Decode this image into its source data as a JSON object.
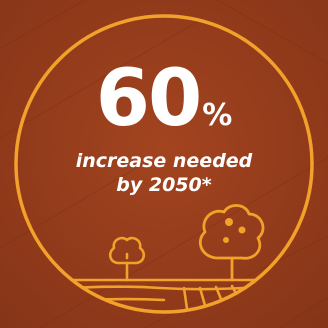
{
  "stat": {
    "value": "60",
    "unit": "%",
    "line1": "increase needed",
    "line2": "by 2050*"
  },
  "colors": {
    "background": "#953c1e",
    "accent": "#f2a12a",
    "text": "#ffffff"
  },
  "icons": [
    "circle-frame-icon",
    "small-tree-icon",
    "large-tree-icon",
    "farm-field-icon"
  ]
}
